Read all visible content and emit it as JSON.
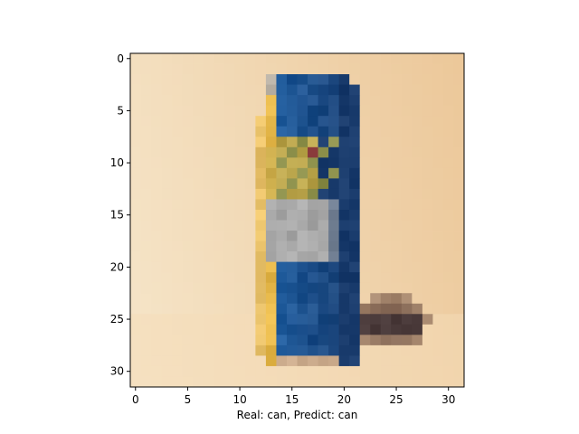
{
  "figure": {
    "background": "#ffffff",
    "xlabel": "Real: can, Predict: can"
  },
  "image": {
    "subject": "pixelated 32x32 image of a blue and yellow can standing upright with a small dark object beside it on a beige surface",
    "grid_size": [
      32,
      32
    ],
    "background_color": "#f2dcb6",
    "can_blue": "#1f5a9a",
    "can_dark_blue": "#183a6b",
    "can_yellow": "#e6b84a",
    "can_gray": "#a9a9a9",
    "object_brown": "#6e5142"
  },
  "axes": {
    "x_ticks": [
      "0",
      "5",
      "10",
      "15",
      "20",
      "25",
      "30"
    ],
    "y_ticks": [
      "0",
      "5",
      "10",
      "15",
      "20",
      "25",
      "30"
    ]
  }
}
